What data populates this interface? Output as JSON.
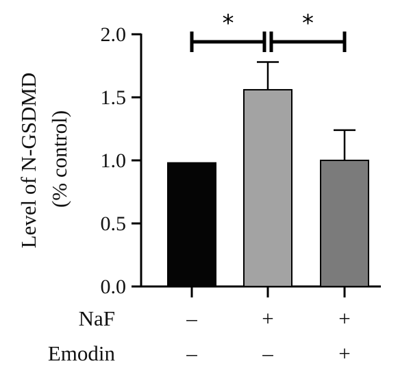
{
  "chart_data": {
    "type": "bar",
    "ylabel_line1": "Level of N-GSDMD",
    "ylabel_line2": "(% control)",
    "ylim": [
      0,
      2.0
    ],
    "yticks": [
      "0.0",
      "0.5",
      "1.0",
      "1.5",
      "2.0"
    ],
    "values": [
      0.98,
      1.56,
      1.0
    ],
    "errors": [
      0,
      0.22,
      0.24
    ],
    "bar_colors": [
      "#050505",
      "#a3a3a3",
      "#7b7b7b"
    ],
    "significance": [
      {
        "from": 0,
        "to": 1,
        "label": "*"
      },
      {
        "from": 1,
        "to": 2,
        "label": "*"
      }
    ],
    "conditions": [
      {
        "name": "NaF",
        "values": [
          "–",
          "+",
          "+"
        ]
      },
      {
        "name": "Emodin",
        "values": [
          "–",
          "–",
          "+"
        ]
      }
    ]
  }
}
